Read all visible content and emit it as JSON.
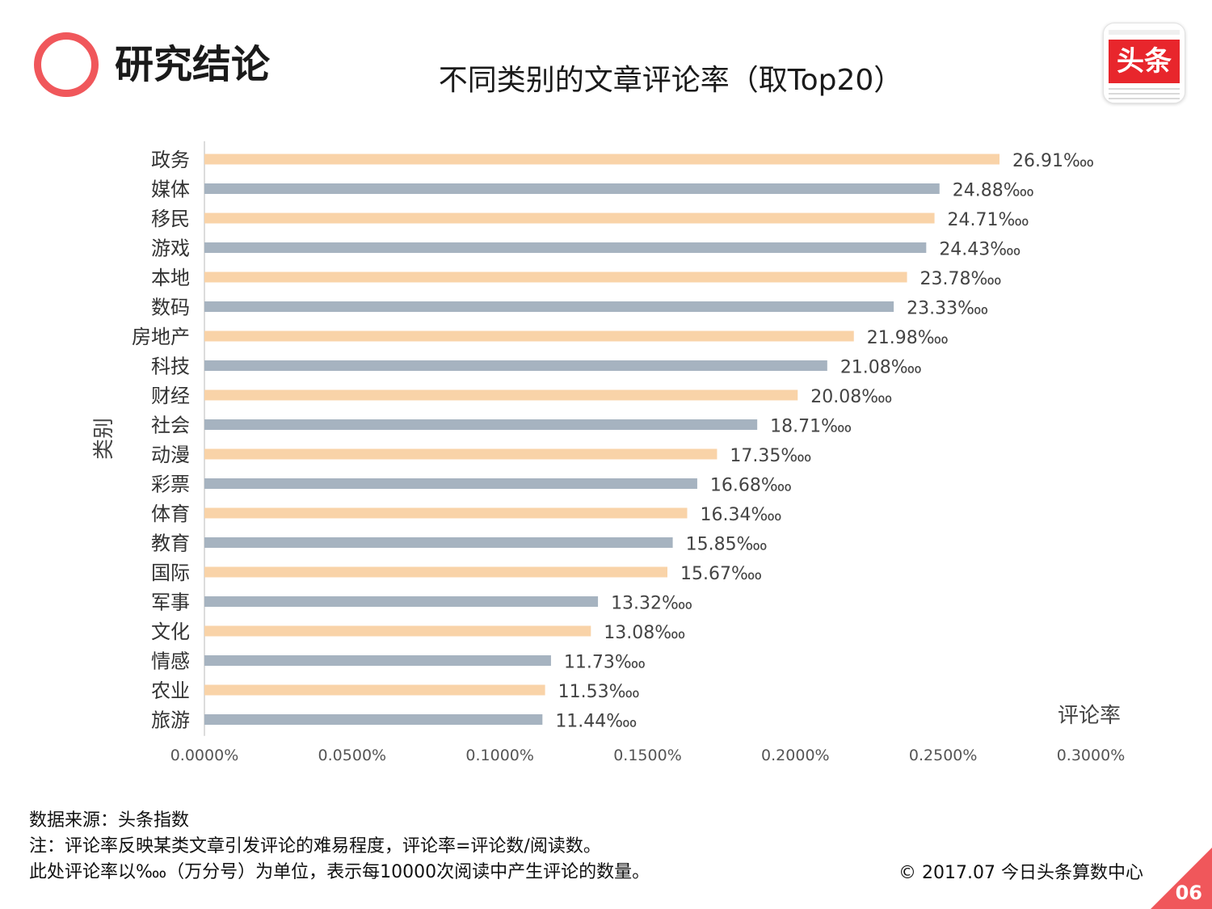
{
  "header": {
    "section_title": "研究结论",
    "chart_title": "不同类别的文章评论率（取Top20）",
    "logo_text": "头条"
  },
  "colors": {
    "accent": "#f0575b",
    "bar_orange": "#f9d3a8",
    "bar_blue": "#a6b3c0",
    "logo_red": "#e8262c"
  },
  "chart_data": {
    "type": "bar",
    "orientation": "horizontal",
    "title": "不同类别的文章评论率（取Top20）",
    "xlabel": "评论率",
    "ylabel": "类别",
    "xlim": [
      0,
      0.003
    ],
    "xticks": [
      0,
      0.0005,
      0.001,
      0.0015,
      0.002,
      0.0025,
      0.003
    ],
    "xtick_labels": [
      "0.0000%",
      "0.0500%",
      "0.1000%",
      "0.1500%",
      "0.2000%",
      "0.2500%",
      "0.3000%"
    ],
    "categories": [
      "政务",
      "媒体",
      "移民",
      "游戏",
      "本地",
      "数码",
      "房地产",
      "科技",
      "财经",
      "社会",
      "动漫",
      "彩票",
      "体育",
      "教育",
      "国际",
      "军事",
      "文化",
      "情感",
      "农业",
      "旅游"
    ],
    "values": [
      26.91,
      24.88,
      24.71,
      24.43,
      23.78,
      23.33,
      21.98,
      21.08,
      20.08,
      18.71,
      17.35,
      16.68,
      16.34,
      15.85,
      15.67,
      13.32,
      13.08,
      11.73,
      11.53,
      11.44
    ],
    "value_unit": "‱",
    "data_labels": [
      "26.91‱",
      "24.88‱",
      "24.71‱",
      "24.43‱",
      "23.78‱",
      "23.33‱",
      "21.98‱",
      "21.08‱",
      "20.08‱",
      "18.71‱",
      "17.35‱",
      "16.68‱",
      "16.34‱",
      "15.85‱",
      "15.67‱",
      "13.32‱",
      "13.08‱",
      "11.73‱",
      "11.53‱",
      "11.44‱"
    ],
    "bar_color_pattern": [
      "orange",
      "blue"
    ],
    "grid": false,
    "legend": "none"
  },
  "footer": {
    "source": "数据来源：头条指数",
    "note1": "注：评论率反映某类文章引发评论的难易程度，评论率=评论数/阅读数。",
    "note2": "此处评论率以‱（万分号）为单位，表示每10000次阅读中产生评论的数量。",
    "copyright": "© 2017.07 今日头条算数中心",
    "page_number": "06"
  }
}
